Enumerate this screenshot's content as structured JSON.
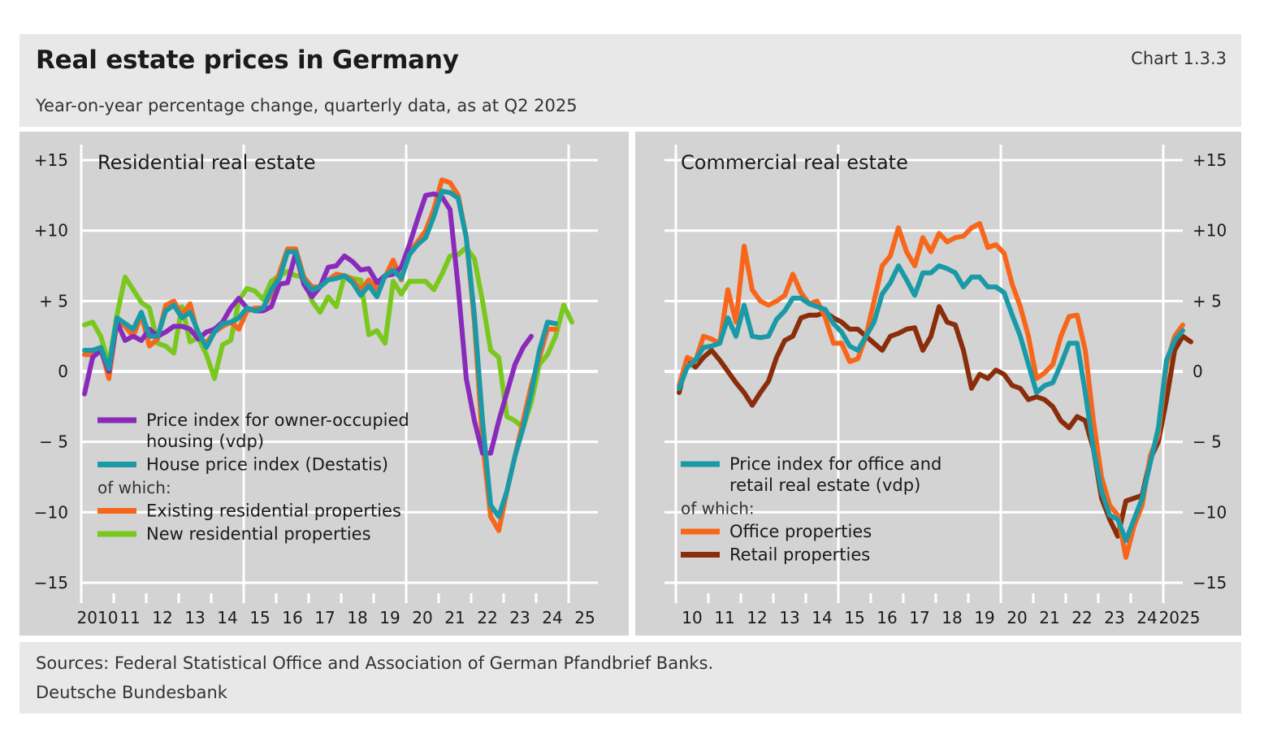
{
  "header": {
    "title": "Real estate prices in Germany",
    "chart_no": "Chart 1.3.3",
    "subtitle": "Year-on-year percentage change, quarterly data, as at Q2 2025"
  },
  "footer": {
    "sources": "Sources: Federal Statistical Office and Association of German Pfandbrief Banks.",
    "publisher": "Deutsche Bundesbank"
  },
  "colors": {
    "purple": "#8a2aba",
    "teal": "#1a9aa6",
    "orange": "#f7661a",
    "green": "#7ac81e",
    "brown": "#8a2d0a",
    "panel_bg": "#d3d3d3"
  },
  "chart_data": [
    {
      "type": "line",
      "title": "Residential real estate",
      "ylim": [
        -15,
        15
      ],
      "y_ticks": [
        "+15",
        "+10",
        "+ 5",
        "0",
        "− 5",
        "−10",
        "−15"
      ],
      "x_start": 2010.0,
      "x_tick_labels": [
        "2010",
        "11",
        "12",
        "13",
        "14",
        "15",
        "16",
        "17",
        "18",
        "19",
        "20",
        "21",
        "22",
        "23",
        "24",
        "25"
      ],
      "legend_note": "of which:",
      "series": [
        {
          "name": "Price index for owner-occupied housing (vdp)",
          "color_key": "purple",
          "values": [
            -1.6,
            1.0,
            1.5,
            0.0,
            3.5,
            2.2,
            2.5,
            2.2,
            3.0,
            2.5,
            2.8,
            3.2,
            3.2,
            3.0,
            2.3,
            2.8,
            3.0,
            3.5,
            4.5,
            5.2,
            4.5,
            4.3,
            4.3,
            4.6,
            6.2,
            6.3,
            8.4,
            6.2,
            5.3,
            6.0,
            7.4,
            7.5,
            8.2,
            7.8,
            7.2,
            7.3,
            6.3,
            6.8,
            6.9,
            7.4,
            9.0,
            10.8,
            12.5,
            12.6,
            12.4,
            11.5,
            6.0,
            -0.5,
            -3.5,
            -5.8,
            -5.8,
            -3.5,
            -1.5,
            0.5,
            1.7,
            2.5
          ]
        },
        {
          "name": "House price index (Destatis)",
          "color_key": "teal",
          "values": [
            1.5,
            1.5,
            1.7,
            0.2,
            3.8,
            3.4,
            3.0,
            4.2,
            2.5,
            2.5,
            4.3,
            4.7,
            3.8,
            4.2,
            2.8,
            1.7,
            2.8,
            3.4,
            3.5,
            3.8,
            4.5,
            4.3,
            4.5,
            5.8,
            6.6,
            8.5,
            8.5,
            6.5,
            5.8,
            6.0,
            6.5,
            6.6,
            6.8,
            6.3,
            5.4,
            6.1,
            5.3,
            6.8,
            7.2,
            6.6,
            8.3,
            9.0,
            9.5,
            11.0,
            12.8,
            12.7,
            12.3,
            9.5,
            4.0,
            -3.5,
            -9.5,
            -10.3,
            -8.5,
            -6.0,
            -4.0,
            -1.5,
            1.5,
            3.5,
            3.4
          ]
        },
        {
          "name": "Existing residential properties",
          "color_key": "orange",
          "values": [
            1.2,
            1.2,
            1.7,
            -0.5,
            3.6,
            3.2,
            2.5,
            4.0,
            1.8,
            2.3,
            4.7,
            5.0,
            4.0,
            4.8,
            2.5,
            2.0,
            2.8,
            3.2,
            3.5,
            3.0,
            4.3,
            4.5,
            4.5,
            5.5,
            7.0,
            8.7,
            8.7,
            6.7,
            6.0,
            6.0,
            6.5,
            6.9,
            6.8,
            6.5,
            5.8,
            6.5,
            5.8,
            6.7,
            7.9,
            6.5,
            8.5,
            9.2,
            10.0,
            11.5,
            13.6,
            13.4,
            12.5,
            9.5,
            3.5,
            -5.0,
            -10.3,
            -11.3,
            -8.5,
            -6.0,
            -3.5,
            -1.0,
            1.0,
            3.0,
            3.0
          ]
        },
        {
          "name": "New residential properties",
          "color_key": "green",
          "values": [
            3.3,
            3.5,
            2.5,
            0.5,
            4.0,
            6.7,
            5.8,
            4.9,
            4.5,
            2.0,
            1.8,
            1.3,
            4.6,
            2.1,
            2.4,
            1.2,
            -0.5,
            1.9,
            2.2,
            5.0,
            5.9,
            5.7,
            5.1,
            6.4,
            6.8,
            7.1,
            6.8,
            6.7,
            5.0,
            4.2,
            5.3,
            4.6,
            6.8,
            6.6,
            6.5,
            2.6,
            2.9,
            2.0,
            6.4,
            5.5,
            6.4,
            6.4,
            6.4,
            5.8,
            6.9,
            8.2,
            8.3,
            8.8,
            8.0,
            5.0,
            1.5,
            1.0,
            -3.2,
            -3.5,
            -4.0,
            -2.2,
            0.5,
            1.2,
            2.5,
            4.7,
            3.5
          ]
        }
      ]
    },
    {
      "type": "line",
      "title": "Commercial real estate",
      "ylim": [
        -15,
        15
      ],
      "y_ticks": [
        "+15",
        "+10",
        "+ 5",
        "0",
        "− 5",
        "−10",
        "−15"
      ],
      "x_start": 2010.0,
      "x_tick_labels": [
        "10",
        "11",
        "12",
        "13",
        "14",
        "15",
        "16",
        "17",
        "18",
        "19",
        "20",
        "21",
        "22",
        "23",
        "24",
        "2025"
      ],
      "legend_note": "of which:",
      "series": [
        {
          "name": "Price index for office and retail real estate (vdp)",
          "color_key": "teal",
          "values": [
            -1.2,
            0.3,
            0.8,
            1.7,
            1.8,
            2.0,
            3.8,
            2.5,
            4.7,
            2.5,
            2.4,
            2.5,
            3.7,
            4.3,
            5.2,
            5.2,
            4.8,
            4.6,
            4.4,
            3.4,
            2.8,
            1.8,
            1.5,
            2.5,
            3.5,
            5.5,
            6.3,
            7.5,
            6.5,
            5.4,
            7.0,
            7.0,
            7.5,
            7.3,
            7.0,
            6.0,
            6.7,
            6.7,
            6.0,
            6.0,
            5.6,
            4.0,
            2.5,
            0.5,
            -1.5,
            -1.0,
            -0.8,
            0.5,
            2.0,
            2.0,
            -1.5,
            -5.5,
            -8.5,
            -10.2,
            -10.5,
            -12.0,
            -10.5,
            -9.0,
            -6.5,
            -4.0,
            0.8,
            2.2,
            2.9
          ]
        },
        {
          "name": "Office properties",
          "color_key": "orange",
          "values": [
            -1.0,
            1.0,
            0.7,
            2.5,
            2.3,
            2.0,
            5.8,
            3.5,
            8.9,
            5.8,
            5.0,
            4.7,
            5.0,
            5.4,
            6.9,
            5.6,
            4.8,
            5.0,
            3.8,
            2.0,
            2.0,
            0.7,
            0.9,
            2.5,
            5.0,
            7.5,
            8.2,
            10.2,
            8.5,
            7.5,
            9.5,
            8.5,
            9.8,
            9.2,
            9.5,
            9.6,
            10.2,
            10.5,
            8.8,
            9.0,
            8.4,
            6.2,
            4.6,
            2.5,
            -0.5,
            -0.1,
            0.5,
            2.5,
            3.9,
            4.0,
            1.5,
            -3.5,
            -7.5,
            -9.5,
            -10.2,
            -13.2,
            -11.0,
            -9.5,
            -6.0,
            -4.5,
            0.5,
            2.5,
            3.3
          ]
        },
        {
          "name": "Retail properties",
          "color_key": "brown",
          "values": [
            -1.5,
            0.9,
            0.3,
            1.0,
            1.5,
            0.8,
            0.0,
            -0.8,
            -1.5,
            -2.4,
            -1.5,
            -0.7,
            1.0,
            2.2,
            2.5,
            3.8,
            4.0,
            4.0,
            4.2,
            3.8,
            3.5,
            3.0,
            3.0,
            2.5,
            2.0,
            1.5,
            2.5,
            2.7,
            3.0,
            3.1,
            1.5,
            2.5,
            4.6,
            3.5,
            3.3,
            1.5,
            -1.2,
            -0.2,
            -0.5,
            0.1,
            -0.2,
            -1.0,
            -1.2,
            -2.0,
            -1.8,
            -2.0,
            -2.5,
            -3.5,
            -4.0,
            -3.2,
            -3.5,
            -5.5,
            -9.0,
            -10.5,
            -11.7,
            -9.2,
            -9.0,
            -8.8,
            -6.2,
            -5.0,
            -2.0,
            1.5,
            2.5,
            2.1
          ]
        }
      ]
    }
  ]
}
